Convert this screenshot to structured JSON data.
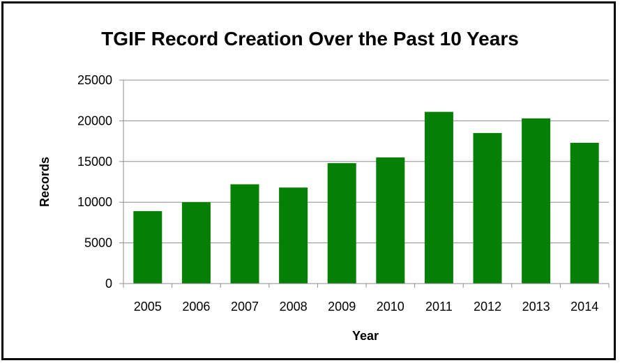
{
  "chart_data": {
    "type": "bar",
    "title": "TGIF Record Creation Over the Past 10 Years",
    "xlabel": "Year",
    "ylabel": "Records",
    "categories": [
      "2005",
      "2006",
      "2007",
      "2008",
      "2009",
      "2010",
      "2011",
      "2012",
      "2013",
      "2014"
    ],
    "values": [
      8900,
      10000,
      12200,
      11800,
      14800,
      15500,
      21100,
      18500,
      20300,
      17300
    ],
    "ylim": [
      0,
      25000
    ],
    "yticks": [
      "0",
      "5000",
      "10000",
      "15000",
      "20000",
      "25000"
    ],
    "grid": true,
    "legend": "none",
    "bar_color": "#058005"
  }
}
